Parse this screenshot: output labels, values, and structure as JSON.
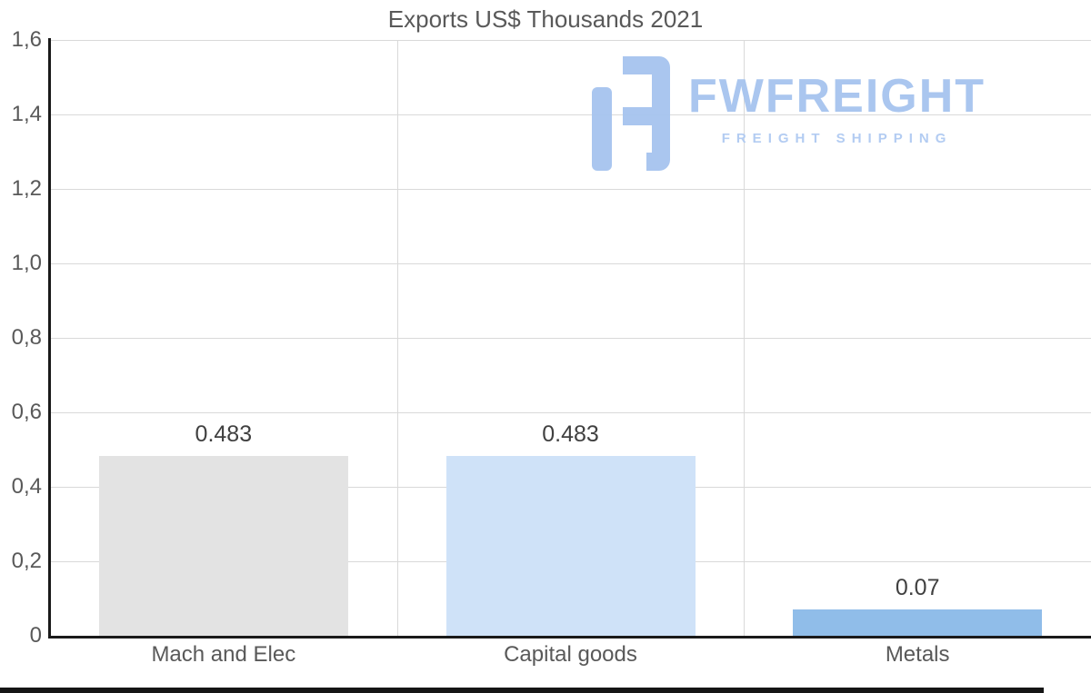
{
  "chart_data": {
    "type": "bar",
    "title": "Exports US$ Thousands 2021",
    "categories": [
      "Mach and Elec",
      "Capital goods",
      "Metals"
    ],
    "values": [
      0.483,
      0.483,
      0.07
    ],
    "value_labels": [
      "0.483",
      "0.483",
      "0.07"
    ],
    "bar_colors": [
      "#e3e3e3",
      "#cfe2f8",
      "#90bde9"
    ],
    "ylim": [
      0,
      1.6
    ],
    "ytick_labels": [
      "0",
      "0,2",
      "0,4",
      "0,6",
      "0,8",
      "1,0",
      "1,2",
      "1,4",
      "1,6"
    ],
    "grid": true,
    "legend": "none",
    "xlabel": "",
    "ylabel": ""
  },
  "watermark": {
    "brand": "FWFREIGHT",
    "tagline": "FREIGHT SHIPPING",
    "color": "#a6c4ef"
  }
}
